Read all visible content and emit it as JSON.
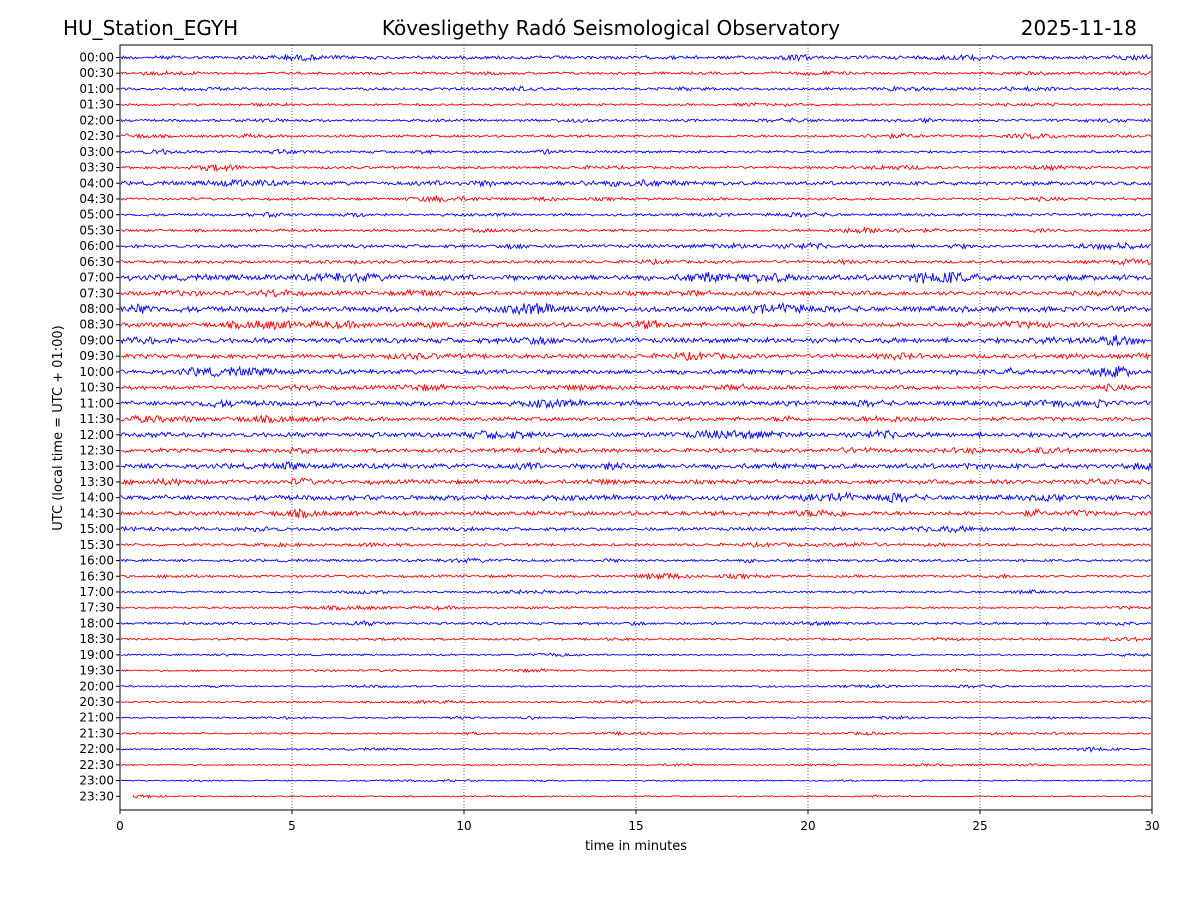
{
  "chart_data": {
    "type": "line",
    "title_left": "HU_Station_EGYH",
    "title_center": "Kövesligethy Radó Seismological Observatory",
    "title_right": "2025-11-18",
    "xlabel": "time in minutes",
    "ylabel": "UTC (local time = UTC + 01:00)",
    "xlim": [
      0,
      30
    ],
    "x_ticks": [
      0,
      5,
      10,
      15,
      20,
      25,
      30
    ],
    "x_tick_labels": [
      "0",
      "5",
      "10",
      "15",
      "20",
      "25",
      "30"
    ],
    "vertical_grid_minutes": [
      5,
      10,
      15,
      20,
      25
    ],
    "grid": "dotted vertical lines at 5-minute intervals",
    "trace_colors": [
      "#0000ff",
      "#ff0000"
    ],
    "row_labels": [
      "00:00",
      "00:30",
      "01:00",
      "01:30",
      "02:00",
      "02:30",
      "03:00",
      "03:30",
      "04:00",
      "04:30",
      "05:00",
      "05:30",
      "06:00",
      "06:30",
      "07:00",
      "07:30",
      "08:00",
      "08:30",
      "09:00",
      "09:30",
      "10:00",
      "10:30",
      "11:00",
      "11:30",
      "12:00",
      "12:30",
      "13:00",
      "13:30",
      "14:00",
      "14:30",
      "15:00",
      "15:30",
      "16:00",
      "16:30",
      "17:00",
      "17:30",
      "18:00",
      "18:30",
      "19:00",
      "19:30",
      "20:00",
      "20:30",
      "21:00",
      "21:30",
      "22:00",
      "22:30",
      "23:00",
      "23:30"
    ],
    "noise_level": [
      0.8,
      0.6,
      0.6,
      0.5,
      0.6,
      0.6,
      0.6,
      0.6,
      0.9,
      0.6,
      0.6,
      0.6,
      0.8,
      0.7,
      1.3,
      1.0,
      1.3,
      1.1,
      1.2,
      1.0,
      1.1,
      0.9,
      1.1,
      0.9,
      1.1,
      0.9,
      1.2,
      1.0,
      1.2,
      1.0,
      0.8,
      0.6,
      0.6,
      0.6,
      0.5,
      0.5,
      0.6,
      0.5,
      0.4,
      0.4,
      0.4,
      0.4,
      0.4,
      0.4,
      0.4,
      0.3,
      0.3,
      0.3
    ]
  }
}
